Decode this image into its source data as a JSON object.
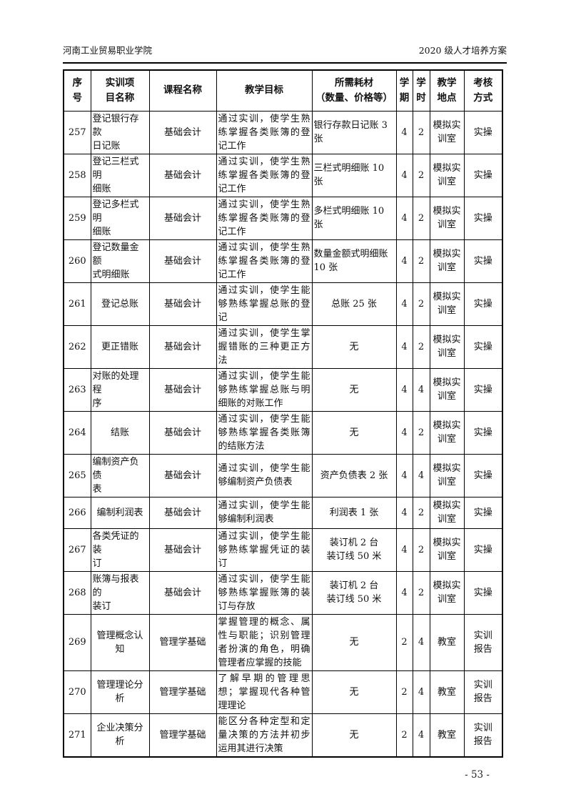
{
  "page": {
    "header_left": "河南工业贸易职业学院",
    "header_right": "2020 级人才培养方案",
    "page_number": "- 53 -"
  },
  "table": {
    "headers": {
      "no": "序\n号",
      "project": "实训项\n目名称",
      "course": "课程名称",
      "goal": "教学目标",
      "consumables": "所需耗材\n（数量、价格等）",
      "semester": "学\n期",
      "hours": "学\n时",
      "location": "教学\n地点",
      "assessment": "考核\n方式"
    },
    "rows": [
      {
        "no": "257",
        "project": "登记银行存款\n日记账",
        "course": "基础会计",
        "goal": "通过实训，使学生熟练掌握各类账簿的登记工作",
        "consumables": "银行存款日记账 3\n张",
        "consumables_align": "left",
        "semester": "4",
        "hours": "2",
        "location": "模拟实\n训室",
        "assessment": "实操"
      },
      {
        "no": "258",
        "project": "登记三栏式明\n细账",
        "course": "基础会计",
        "goal": "通过实训，使学生熟练掌握各类账簿的登记工作",
        "consumables": "三栏式明细账 10\n张",
        "consumables_align": "left",
        "semester": "4",
        "hours": "2",
        "location": "模拟实\n训室",
        "assessment": "实操"
      },
      {
        "no": "259",
        "project": "登记多栏式明\n细账",
        "course": "基础会计",
        "goal": "通过实训，使学生熟练掌握各类账簿的登记工作",
        "consumables": "多栏式明细账 10\n张",
        "consumables_align": "left",
        "semester": "4",
        "hours": "2",
        "location": "模拟实\n训室",
        "assessment": "实操"
      },
      {
        "no": "260",
        "project": "登记数量金额\n式明细账",
        "course": "基础会计",
        "goal": "通过实训，使学生熟练掌握各类账簿的登记工作",
        "consumables": "数量金额式明细账\n10 张",
        "consumables_align": "left",
        "semester": "4",
        "hours": "2",
        "location": "模拟实\n训室",
        "assessment": "实操"
      },
      {
        "no": "261",
        "project": "登记总账",
        "course": "基础会计",
        "goal": "通过实训，使学生能够熟练掌握总账的登记",
        "consumables": "总账 25 张",
        "consumables_align": "center",
        "semester": "4",
        "hours": "2",
        "location": "模拟实\n训室",
        "assessment": "实操"
      },
      {
        "no": "262",
        "project": "更正错账",
        "course": "基础会计",
        "goal": "通过实训，使学生掌握错账的三种更正方法",
        "consumables": "无",
        "consumables_align": "center",
        "semester": "4",
        "hours": "2",
        "location": "模拟实\n训室",
        "assessment": "实操"
      },
      {
        "no": "263",
        "project": "对账的处理程\n序",
        "course": "基础会计",
        "goal": "通过实训，使学生能够熟练掌握总账与明细账的对账工作",
        "consumables": "无",
        "consumables_align": "center",
        "semester": "4",
        "hours": "4",
        "location": "模拟实\n训室",
        "assessment": "实操"
      },
      {
        "no": "264",
        "project": "结账",
        "course": "基础会计",
        "goal": "通过实训，使学生能够熟练掌握各类账簿的结账方法",
        "consumables": "无",
        "consumables_align": "center",
        "semester": "4",
        "hours": "2",
        "location": "模拟实\n训室",
        "assessment": "实操"
      },
      {
        "no": "265",
        "project": "编制资产负债\n表",
        "course": "基础会计",
        "goal": "通过实训，使学生能够编制资产负债表",
        "consumables": "资产负债表 2 张",
        "consumables_align": "center",
        "semester": "4",
        "hours": "4",
        "location": "模拟实\n训室",
        "assessment": "实操"
      },
      {
        "no": "266",
        "project": "编制利润表",
        "course": "基础会计",
        "goal": "通过实训，使学生能够编制利润表",
        "consumables": "利润表 1 张",
        "consumables_align": "center",
        "semester": "4",
        "hours": "2",
        "location": "模拟实\n训室",
        "assessment": "实操"
      },
      {
        "no": "267",
        "project": "各类凭证的装\n订",
        "course": "基础会计",
        "goal": "通过实训，使学生能够熟练掌握凭证的装订",
        "consumables": "装订机 2 台\n装订线 50 米",
        "consumables_align": "center",
        "semester": "4",
        "hours": "2",
        "location": "模拟实\n训室",
        "assessment": "实操"
      },
      {
        "no": "268",
        "project": "账簿与报表的\n装订",
        "course": "基础会计",
        "goal": "通过实训，使学生能够熟练掌握账簿的装订与存放",
        "consumables": "装订机 2 台\n装订线 50 米",
        "consumables_align": "center",
        "semester": "4",
        "hours": "2",
        "location": "模拟实\n训室",
        "assessment": "实操"
      },
      {
        "no": "269",
        "project": "管理概念认知",
        "course": "管理学基础",
        "goal": "掌握管理的概念、属性与职能；识别管理者扮演的角色，明确管理者应掌握的技能",
        "consumables": "无",
        "consumables_align": "center",
        "semester": "2",
        "hours": "4",
        "location": "教室",
        "assessment": "实训\n报告"
      },
      {
        "no": "270",
        "project": "管理理论分析",
        "course": "管理学基础",
        "goal": "了解早期的管理思想；掌握现代各种管理理论",
        "consumables": "无",
        "consumables_align": "center",
        "semester": "2",
        "hours": "4",
        "location": "教室",
        "assessment": "实训\n报告"
      },
      {
        "no": "271",
        "project": "企业决策分析",
        "course": "管理学基础",
        "goal": "能区分各种定型和定量决策的方法并初步运用其进行决策",
        "consumables": "无",
        "consumables_align": "center",
        "semester": "2",
        "hours": "4",
        "location": "教室",
        "assessment": "实训\n报告"
      }
    ]
  }
}
